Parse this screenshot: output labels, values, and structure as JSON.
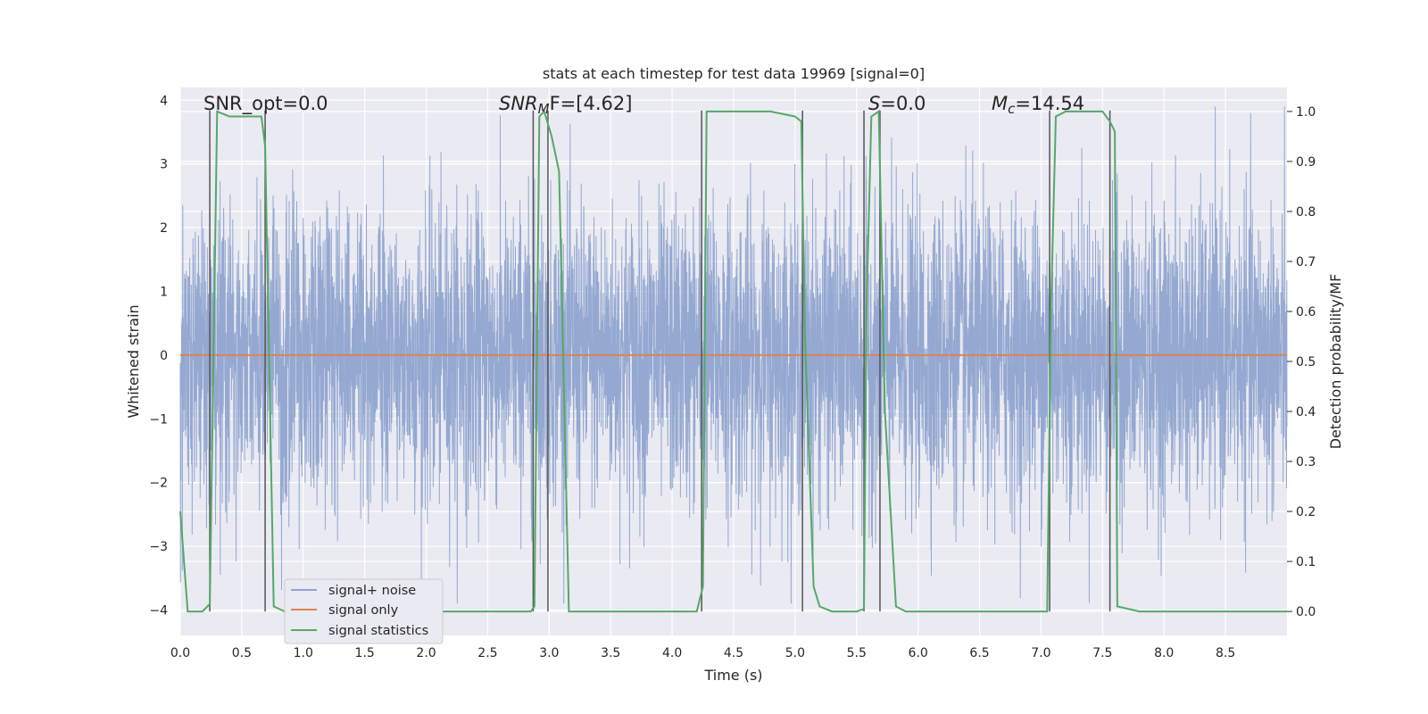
{
  "chart_data": {
    "type": "line",
    "title": "stats at each timestep for test data 19969 [signal=0]",
    "xlabel": "Time (s)",
    "ylabel": "Whitened strain",
    "ylabel_right": "Detection probability/MF",
    "xlim": [
      0.0,
      9.0
    ],
    "ylim": [
      -4.4,
      4.2
    ],
    "ylim_right": [
      -0.048,
      1.048
    ],
    "x_ticks": [
      "0.0",
      "0.5",
      "1.0",
      "1.5",
      "2.0",
      "2.5",
      "3.0",
      "3.5",
      "4.0",
      "4.5",
      "5.0",
      "5.5",
      "6.0",
      "6.5",
      "7.0",
      "7.5",
      "8.0",
      "8.5"
    ],
    "y_ticks": [
      "4",
      "3",
      "2",
      "1",
      "0",
      "−1",
      "−2",
      "−3",
      "−4"
    ],
    "y_right_ticks": [
      "1.0",
      "0.9",
      "0.8",
      "0.7",
      "0.6",
      "0.5",
      "0.4",
      "0.3",
      "0.2",
      "0.1",
      "0.0"
    ],
    "grid": true,
    "legend_placement": "lower-left",
    "annotations": {
      "snr_opt": "SNR_opt=0.0",
      "snr_mf_sym": "SNR",
      "snr_mf_sub": "M",
      "snr_mf_tail": "F=[4.62]",
      "s_sym": "S",
      "s_tail": "=0.0",
      "mc_sym": "M",
      "mc_sub": "c",
      "mc_tail": "=14.54"
    },
    "series": [
      {
        "name": "signal+ noise",
        "color": "#8fa4cf",
        "note": "dense whitened noise, roughly within [-4, 4], sampled stochastically for display",
        "amplitude_envelope": [
          -3.9,
          3.9
        ]
      },
      {
        "name": "signal only",
        "color": "#dd8452",
        "x": [
          0.0,
          9.0
        ],
        "y": [
          0.0,
          0.0
        ]
      },
      {
        "name": "signal statistics",
        "color": "#55a868",
        "axis": "right",
        "x": [
          0.0,
          0.06,
          0.18,
          0.24,
          0.3,
          0.4,
          0.5,
          0.6,
          0.66,
          0.69,
          0.76,
          0.85,
          2.5,
          2.85,
          2.88,
          2.92,
          2.96,
          3.02,
          3.08,
          3.16,
          3.25,
          4.0,
          4.2,
          4.25,
          4.28,
          4.35,
          4.6,
          4.8,
          5.0,
          5.05,
          5.08,
          5.15,
          5.2,
          5.3,
          5.5,
          5.56,
          5.58,
          5.62,
          5.68,
          5.73,
          5.82,
          5.9,
          6.5,
          7.05,
          7.08,
          7.12,
          7.2,
          7.3,
          7.5,
          7.56,
          7.6,
          7.62,
          7.8,
          9.0
        ],
        "y": [
          0.2,
          0.0,
          0.0,
          0.015,
          1.0,
          0.99,
          0.99,
          0.99,
          0.99,
          0.93,
          0.01,
          0.0,
          0.0,
          0.0,
          0.01,
          0.99,
          1.0,
          0.95,
          0.88,
          0.0,
          0.0,
          0.0,
          0.0,
          0.05,
          1.0,
          1.0,
          1.0,
          1.0,
          0.99,
          0.98,
          0.55,
          0.05,
          0.01,
          0.0,
          0.0,
          0.005,
          0.6,
          0.99,
          1.0,
          0.4,
          0.01,
          0.0,
          0.0,
          0.0,
          0.6,
          0.99,
          1.0,
          1.0,
          1.0,
          0.98,
          0.96,
          0.01,
          0.0,
          0.0
        ]
      }
    ],
    "markers": {
      "color": "#555555",
      "x": [
        0.24,
        0.69,
        2.87,
        2.99,
        4.24,
        5.06,
        5.56,
        5.69,
        7.07,
        7.56
      ],
      "top_y_right": 1.0
    }
  }
}
